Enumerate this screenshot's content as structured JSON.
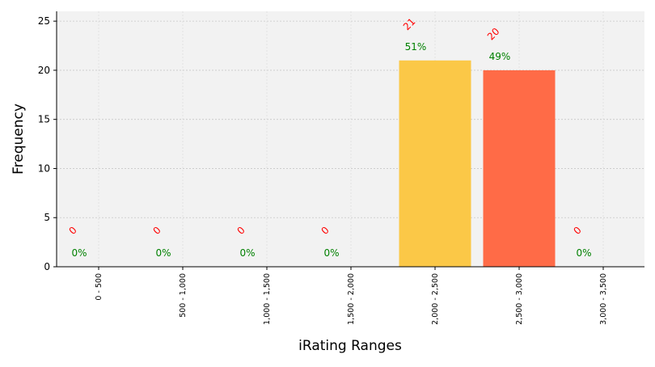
{
  "chart_data": {
    "type": "bar",
    "xlabel": "iRating Ranges",
    "ylabel": "Frequency",
    "categories": [
      "0 - 500",
      "500 - 1,000",
      "1,000 - 1,500",
      "1,500 - 2,000",
      "2,000 - 2,500",
      "2,500 - 3,000",
      "3,000 - 3,500"
    ],
    "values": [
      0,
      0,
      0,
      0,
      21,
      20,
      0
    ],
    "count_labels": [
      "0",
      "0",
      "0",
      "0",
      "21",
      "20",
      "0"
    ],
    "percent_labels": [
      "0%",
      "0%",
      "0%",
      "0%",
      "51%",
      "49%",
      "0%"
    ],
    "bar_colors": [
      "#FBC847",
      "#FBC847",
      "#FBC847",
      "#FBC847",
      "#FBC847",
      "#FF6B47",
      "#FF6B47"
    ],
    "yticks": [
      "0",
      "5",
      "10",
      "15",
      "20",
      "25"
    ],
    "ylim": [
      0,
      26
    ],
    "grid": true,
    "count_label_color": "#FF0000",
    "percent_label_color": "#008000",
    "plot_background": "#F2F2F2"
  }
}
